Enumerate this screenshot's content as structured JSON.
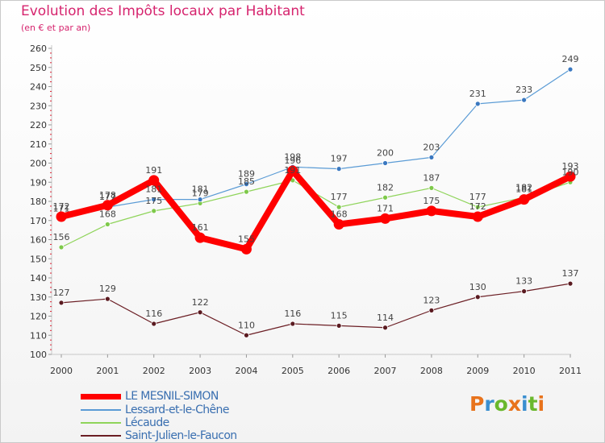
{
  "header": {
    "title": "Evolution des Impôts locaux par Habitant",
    "subtitle": "(en € et par an)"
  },
  "logo": {
    "text": "Proxiti",
    "colors": [
      "#e8731c",
      "#3a8fd0",
      "#6ab82d",
      "#e8731c",
      "#3a8fd0",
      "#6ab82d",
      "#e8731c"
    ]
  },
  "chart_data": {
    "type": "line",
    "title": "Evolution des Impôts locaux par Habitant",
    "subtitle": "(en € et par an)",
    "xlabel": "",
    "ylabel": "",
    "ylim": [
      100,
      260
    ],
    "ytick_step": 10,
    "grid": false,
    "categories": [
      "2000",
      "2001",
      "2002",
      "2003",
      "2004",
      "2005",
      "2006",
      "2007",
      "2008",
      "2009",
      "2010",
      "2011"
    ],
    "series": [
      {
        "name": "LE MESNIL-SIMON",
        "color": "#ff0000",
        "values": [
          172,
          178,
          191,
          161,
          155,
          196,
          168,
          171,
          175,
          172,
          181,
          193
        ],
        "labels": [
          "172",
          "178",
          "191",
          "161",
          "155",
          "196",
          "168",
          "171",
          "175",
          "172",
          "181",
          "193"
        ]
      },
      {
        "name": "Lessard-et-le-Chêne",
        "color": "#5a9bd5",
        "values": [
          171,
          177,
          181,
          181,
          189,
          198,
          197,
          200,
          203,
          231,
          233,
          249
        ],
        "labels": [
          "171",
          "177",
          "181",
          "181",
          "189",
          "198",
          "197",
          "200",
          "203",
          "231",
          "233",
          "249"
        ]
      },
      {
        "name": "Lécaude",
        "color": "#8fd45a",
        "values": [
          156,
          168,
          175,
          179,
          185,
          191,
          177,
          182,
          187,
          177,
          182,
          190
        ],
        "labels": [
          "156",
          "168",
          "175",
          "179",
          "185",
          "191",
          "177",
          "182",
          "187",
          "177",
          "182",
          "190"
        ]
      },
      {
        "name": "Saint-Julien-le-Faucon",
        "color": "#6b1e24",
        "values": [
          127,
          129,
          116,
          122,
          110,
          116,
          115,
          114,
          123,
          130,
          133,
          137
        ],
        "labels": [
          "127",
          "129",
          "116",
          "122",
          "110",
          "116",
          "115",
          "114",
          "123",
          "130",
          "133",
          "137"
        ]
      }
    ],
    "legend": "bottom-left"
  }
}
